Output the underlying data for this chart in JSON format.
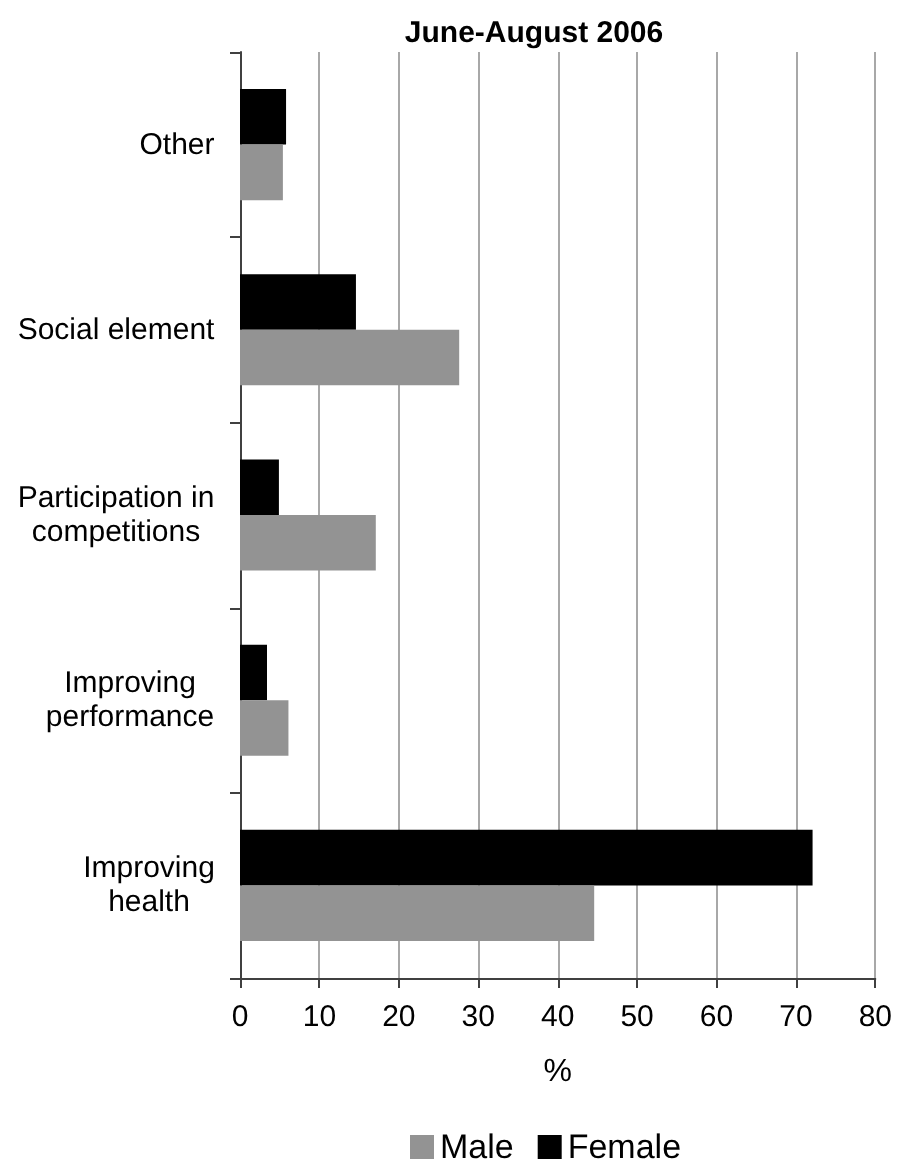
{
  "chart_data": {
    "type": "bar",
    "orientation": "horizontal",
    "title": "June-August 2006",
    "xlabel": "%",
    "categories": [
      "Other",
      "Social element",
      "Participation in competitions",
      "Improving performance",
      "Improving health"
    ],
    "series": [
      {
        "name": "Male",
        "color": "#939393",
        "values": [
          5.4,
          27.6,
          17.1,
          6.1,
          44.6
        ]
      },
      {
        "name": "Female",
        "color": "#000000",
        "values": [
          5.8,
          14.6,
          4.9,
          3.4,
          72.1
        ]
      }
    ],
    "xlim": [
      0,
      80
    ],
    "xticks": [
      0,
      10,
      20,
      30,
      40,
      50,
      60,
      70,
      80
    ],
    "grid": "x",
    "legend": "bottom"
  }
}
